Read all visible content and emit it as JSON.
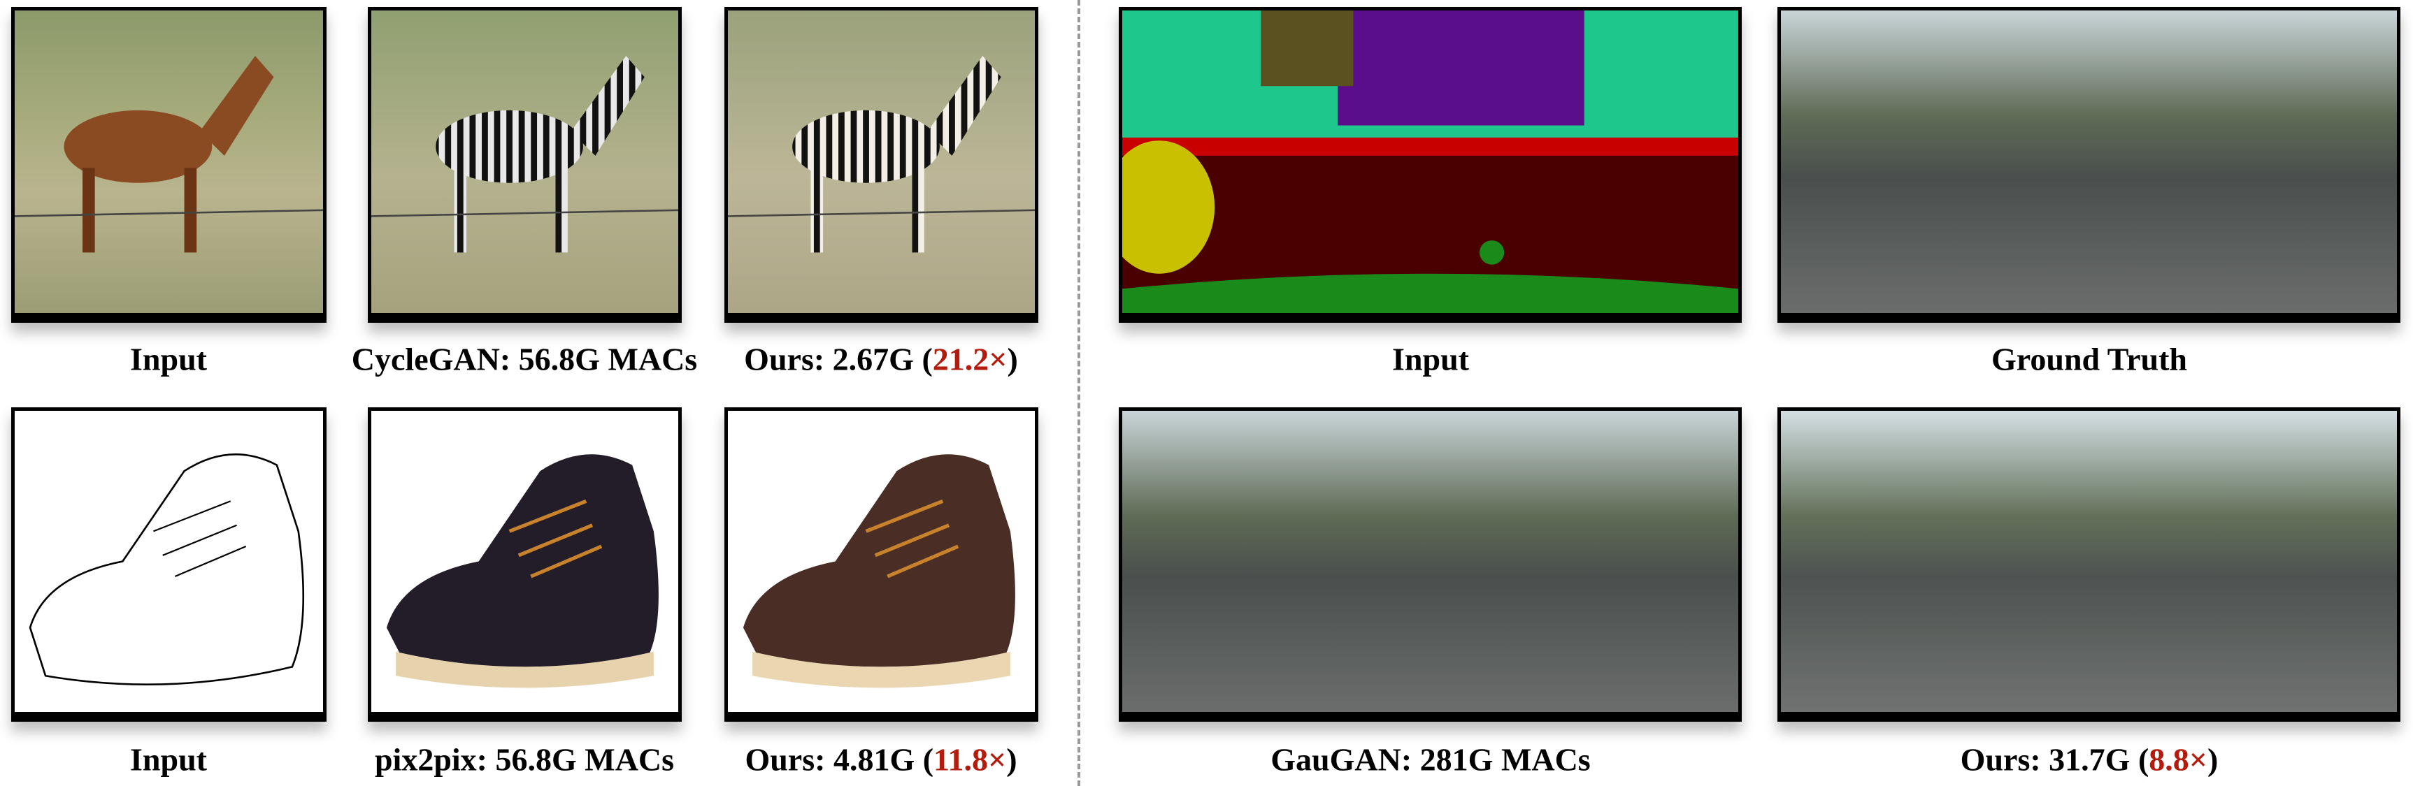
{
  "left_panel": {
    "row1": {
      "captions": [
        {
          "label": "Input"
        },
        {
          "label": "CycleGAN: 56.8G MACs"
        },
        {
          "prefix": "Ours: 2.67G (",
          "speedup": "21.2×",
          "suffix": ")"
        }
      ]
    },
    "row2": {
      "captions": [
        {
          "label": "Input"
        },
        {
          "label": "pix2pix: 56.8G MACs"
        },
        {
          "prefix": "Ours: 4.81G (",
          "speedup": "11.8×",
          "suffix": ")"
        }
      ]
    }
  },
  "right_panel": {
    "row1": {
      "captions": [
        {
          "label": "Input"
        },
        {
          "label": "Ground Truth"
        }
      ]
    },
    "row2": {
      "captions": [
        {
          "label": "GauGAN: 281G MACs"
        },
        {
          "prefix": "Ours: 31.7G (",
          "speedup": "8.8×",
          "suffix": ")"
        }
      ]
    }
  },
  "colors": {
    "speedup": "#b31b0c",
    "divider": "#999999"
  }
}
